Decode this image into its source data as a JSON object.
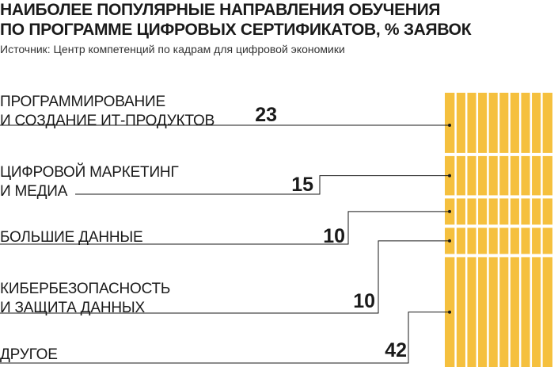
{
  "header": {
    "title_line1": "НАИБОЛЕЕ ПОПУЛЯРНЫЕ НАПРАВЛЕНИЯ ОБУЧЕНИЯ",
    "title_line2": "ПО ПРОГРАММЕ ЦИФРОВЫХ СЕРТИФИКАТОВ, % ЗАЯВОК",
    "source": "Источник: Центр компетенций по кадрам для цифровой экономики"
  },
  "colors": {
    "bar_fill": "#F5C03E",
    "bar_stripe": "#ffffff",
    "text": "#1a1a1a",
    "leader_line": "#1a1a1a"
  },
  "chart_data": {
    "type": "bar",
    "orientation": "stacked-vertical",
    "unit": "%",
    "categories": [
      "ПРОГРАММИРОВАНИЕ\nИ СОЗДАНИЕ ИТ-ПРОДУКТОВ",
      "ЦИФРОВОЙ МАРКЕТИНГ\nИ МЕДИА",
      "БОЛЬШИЕ ДАННЫЕ",
      "КИБЕРБЕЗОПАСНОСТЬ\nИ ЗАЩИТА ДАННЫХ",
      "ДРУГОЕ"
    ],
    "values": [
      23,
      15,
      10,
      10,
      42
    ],
    "value_labels": [
      "23",
      "15",
      "10",
      "10",
      "42"
    ],
    "title": "НАИБОЛЕЕ ПОПУЛЯРНЫЕ НАПРАВЛЕНИЯ ОБУЧЕНИЯ ПО ПРОГРАММЕ ЦИФРОВЫХ СЕРТИФИКАТОВ, % ЗАЯВОК",
    "xlabel": "",
    "ylabel": "",
    "legend": "none",
    "grid": false
  }
}
